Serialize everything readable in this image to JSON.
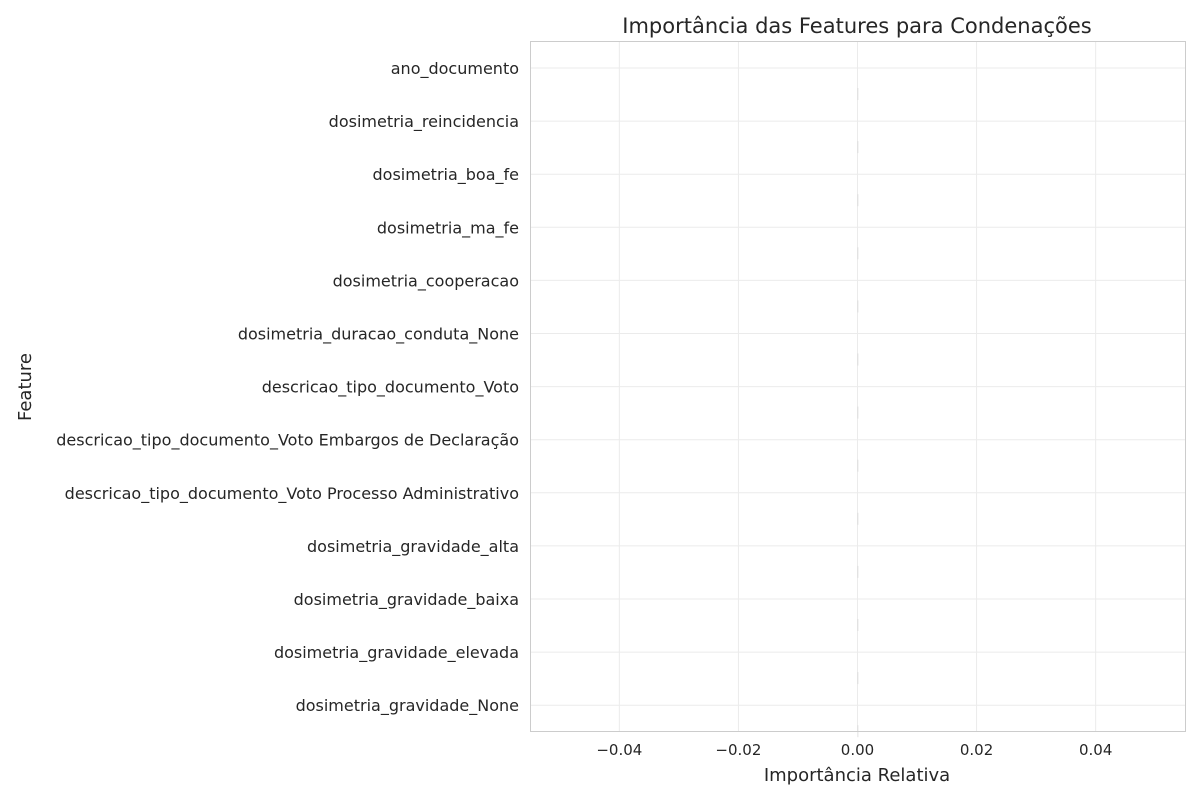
{
  "chart_data": {
    "type": "bar",
    "orientation": "horizontal",
    "title": "Importância das Features para Condenações",
    "xlabel": "Importância Relativa",
    "ylabel": "Feature",
    "categories": [
      "ano_documento",
      "dosimetria_reincidencia",
      "dosimetria_boa_fe",
      "dosimetria_ma_fe",
      "dosimetria_cooperacao",
      "dosimetria_duracao_conduta_None",
      "descricao_tipo_documento_Voto",
      "descricao_tipo_documento_Voto Embargos de Declaração",
      "descricao_tipo_documento_Voto Processo Administrativo",
      "dosimetria_gravidade_alta",
      "dosimetria_gravidade_baixa",
      "dosimetria_gravidade_elevada",
      "dosimetria_gravidade_None"
    ],
    "values": [
      0,
      0,
      0,
      0,
      0,
      0,
      0,
      0,
      0,
      0,
      0,
      0,
      0
    ],
    "xlim": [
      -0.055,
      0.055
    ],
    "xticks": [
      -0.04,
      -0.02,
      0.0,
      0.02,
      0.04
    ],
    "xtick_labels": [
      "−0.04",
      "−0.02",
      "0.00",
      "0.02",
      "0.04"
    ],
    "grid": true,
    "legend": "none",
    "colors": {
      "grid": "#ebebeb",
      "spine": "#cccccc",
      "text": "#262626",
      "bar": "#d9d9d9"
    }
  }
}
